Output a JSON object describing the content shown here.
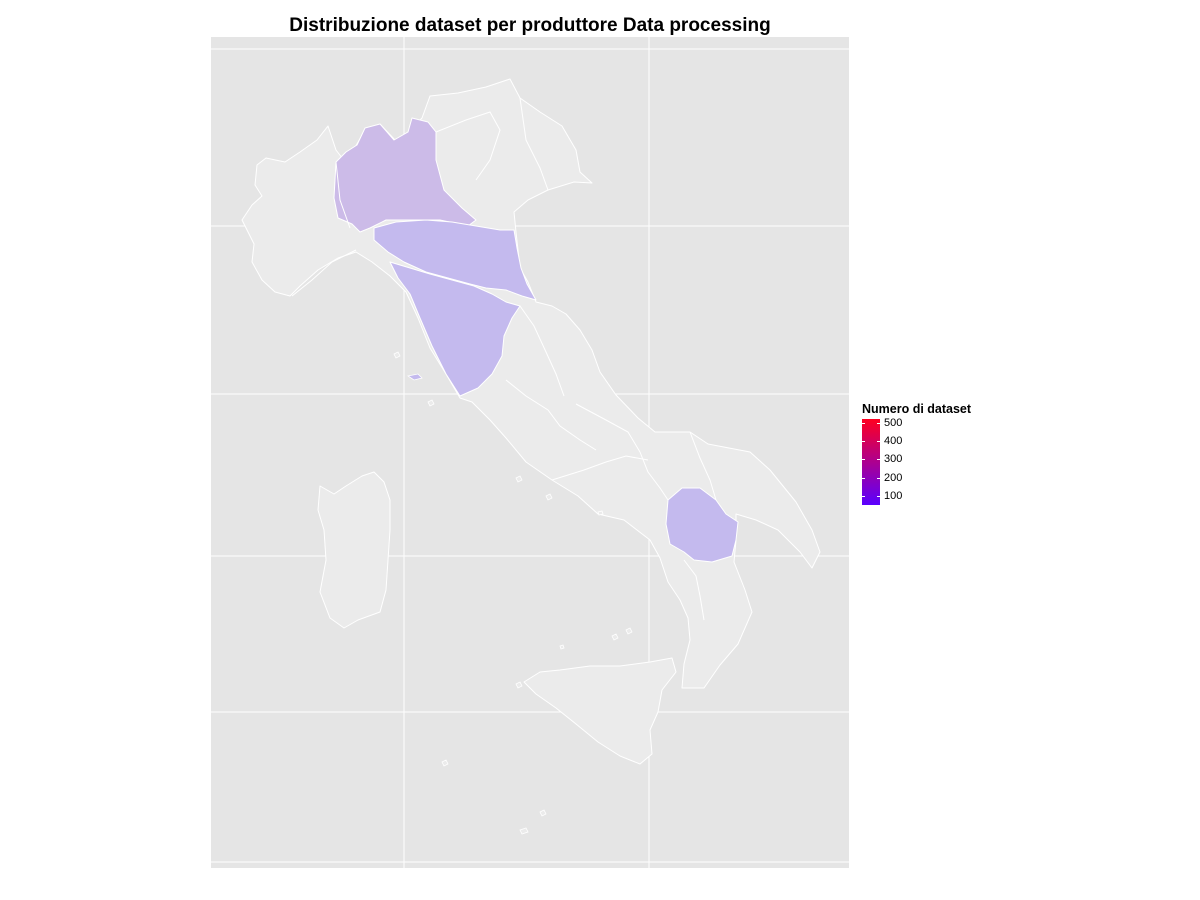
{
  "chart_data": {
    "type": "choropleth",
    "title": "Distribuzione dataset per produttore Data processing",
    "legend": {
      "title": "Numero di dataset",
      "placement": "right",
      "ticks": [
        500,
        400,
        300,
        200,
        100
      ],
      "min": 50,
      "max": 520,
      "low_color": "#5a00ff",
      "high_color": "#ff0020"
    },
    "region_colors": {
      "no_data": "#ebebeb",
      "highlight_1": "#ccbbe8",
      "highlight_2": "#c4baee"
    },
    "panel_background": "#e5e5e5",
    "gridline_color": "#ffffff",
    "highlighted_regions": [
      "lombardia",
      "emilia-romagna",
      "toscana",
      "basilicata"
    ],
    "grid": true
  }
}
